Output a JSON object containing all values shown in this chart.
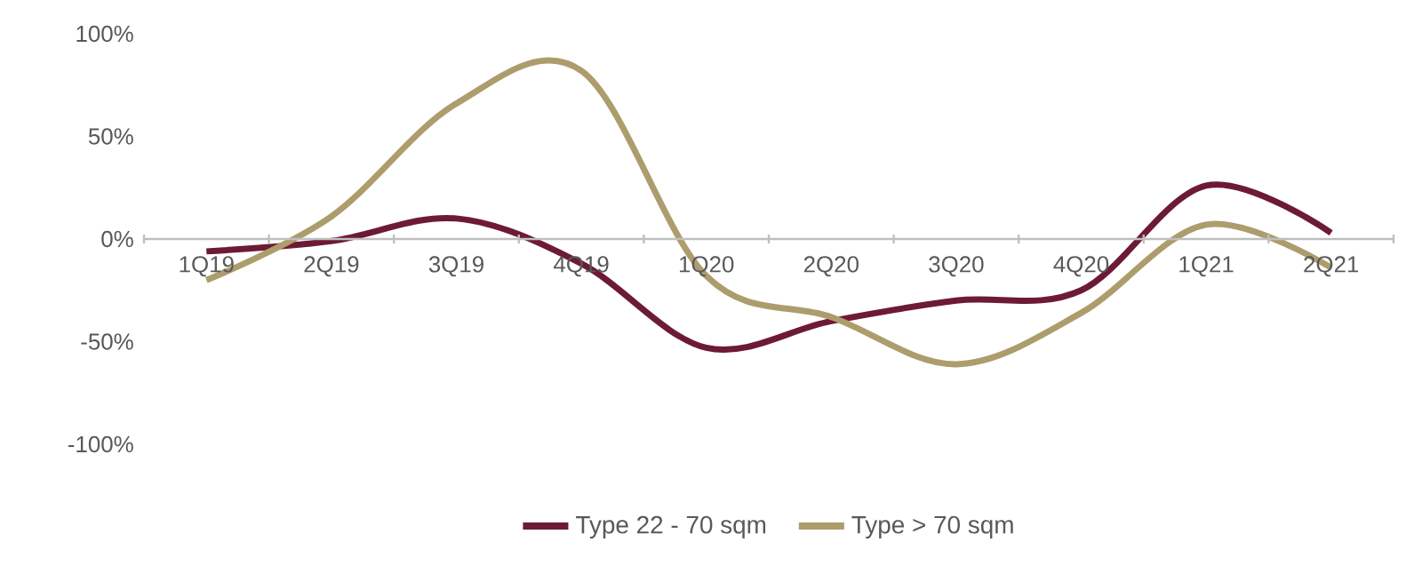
{
  "chart_data": {
    "type": "line",
    "categories": [
      "1Q19",
      "2Q19",
      "3Q19",
      "4Q19",
      "1Q20",
      "2Q20",
      "3Q20",
      "4Q20",
      "1Q21",
      "2Q21"
    ],
    "series": [
      {
        "name": "Type 22 - 70 sqm",
        "color": "#6d1a36",
        "values": [
          -6,
          -1,
          10,
          -12,
          -53,
          -40,
          -30,
          -25,
          26,
          3
        ]
      },
      {
        "name": "Type > 70 sqm",
        "color": "#ad9d6d",
        "values": [
          -20,
          11,
          66,
          82,
          -18,
          -38,
          -61,
          -36,
          7,
          -14
        ]
      }
    ],
    "ylim": [
      -100,
      100
    ],
    "yticks": [
      {
        "value": -100,
        "label": "-100%"
      },
      {
        "value": -50,
        "label": "-50%"
      },
      {
        "value": 0,
        "label": "0%"
      },
      {
        "value": 50,
        "label": "50%"
      },
      {
        "value": 100,
        "label": "100%"
      }
    ],
    "grid": false,
    "legend": "bottom",
    "marker": "none",
    "line_style": "solid"
  }
}
